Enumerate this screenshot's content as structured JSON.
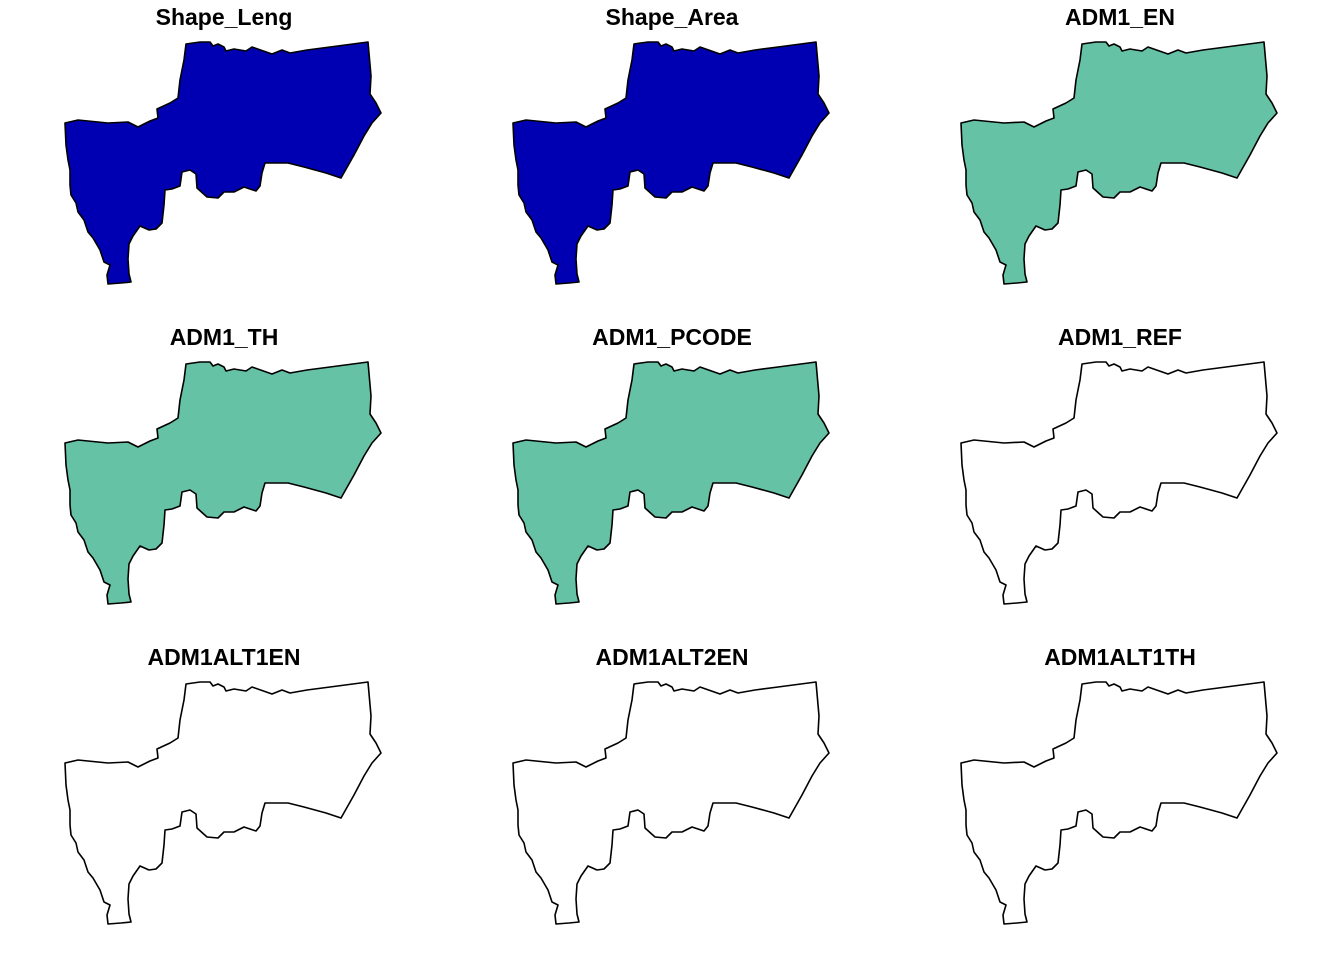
{
  "panels": [
    {
      "title": "Shape_Leng",
      "fill": "#0000b2"
    },
    {
      "title": "Shape_Area",
      "fill": "#0000b2"
    },
    {
      "title": "ADM1_EN",
      "fill": "#66c2a5"
    },
    {
      "title": "ADM1_TH",
      "fill": "#66c2a5"
    },
    {
      "title": "ADM1_PCODE",
      "fill": "#66c2a5"
    },
    {
      "title": "ADM1_REF",
      "fill": "#ffffff"
    },
    {
      "title": "ADM1ALT1EN",
      "fill": "#ffffff"
    },
    {
      "title": "ADM1ALT2EN",
      "fill": "#ffffff"
    },
    {
      "title": "ADM1ALT1TH",
      "fill": "#ffffff"
    }
  ]
}
